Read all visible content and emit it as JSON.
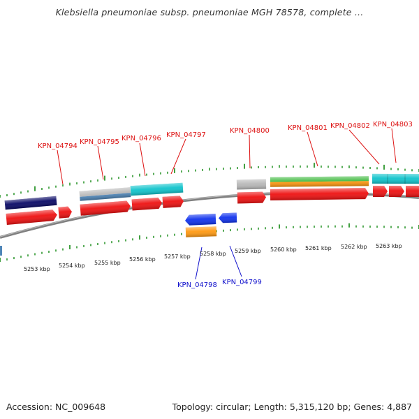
{
  "title": "Klebsiella pneumoniae subsp. pneumoniae MGH 78578, complete ...",
  "accession": "Accession: NC_009648",
  "topology": "Topology: circular; Length: 5,315,120 bp; Genes: 4,887",
  "kbp_labels": [
    "5253 kbp",
    "5254 kbp",
    "5255 kbp",
    "5256 kbp",
    "5257 kbp",
    "5258 kbp",
    "5259 kbp",
    "5260 kbp",
    "5261 kbp",
    "5262 kbp",
    "5263 kbp"
  ],
  "forward_gene_labels": [
    "KPN_04794",
    "KPN_04795",
    "KPN_04796",
    "KPN_04797",
    "KPN_04800",
    "KPN_04801",
    "KPN_04802",
    "KPN_04803"
  ],
  "reverse_gene_labels": [
    "KPN_04798",
    "KPN_04799"
  ],
  "colors": {
    "forward_label": "#dd1111",
    "reverse_label": "#1111cc",
    "cds_forward": "#ee1111",
    "cds_reverse": "#1133ee",
    "tick": "#118811",
    "backbone": "#888888",
    "navy": "#0a0a66",
    "cyan": "#11c4cc",
    "grey": "#b8b8b8",
    "green": "#44bb44",
    "orange": "#ff9911",
    "steel": "#4f86b8"
  }
}
